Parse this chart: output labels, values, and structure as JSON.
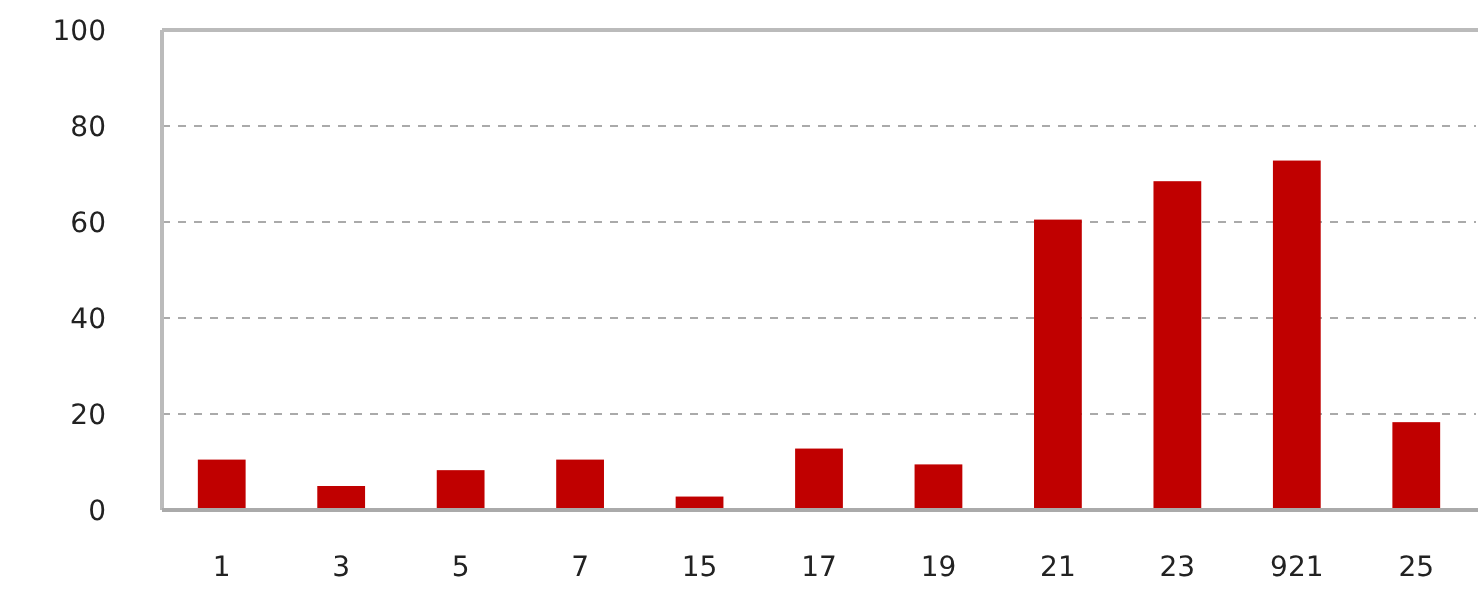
{
  "chart_data": {
    "type": "bar",
    "categories": [
      "1",
      "3",
      "5",
      "7",
      "15",
      "17",
      "19",
      "21",
      "23",
      "921",
      "25"
    ],
    "values": [
      10.5,
      5,
      8.3,
      10.5,
      2.8,
      12.8,
      9.5,
      60.5,
      68.5,
      72.8,
      18.3
    ],
    "color": "#c00000",
    "ylim": [
      0,
      100
    ],
    "yticks": [
      0,
      20,
      40,
      60,
      80,
      100
    ],
    "grid": "y"
  }
}
